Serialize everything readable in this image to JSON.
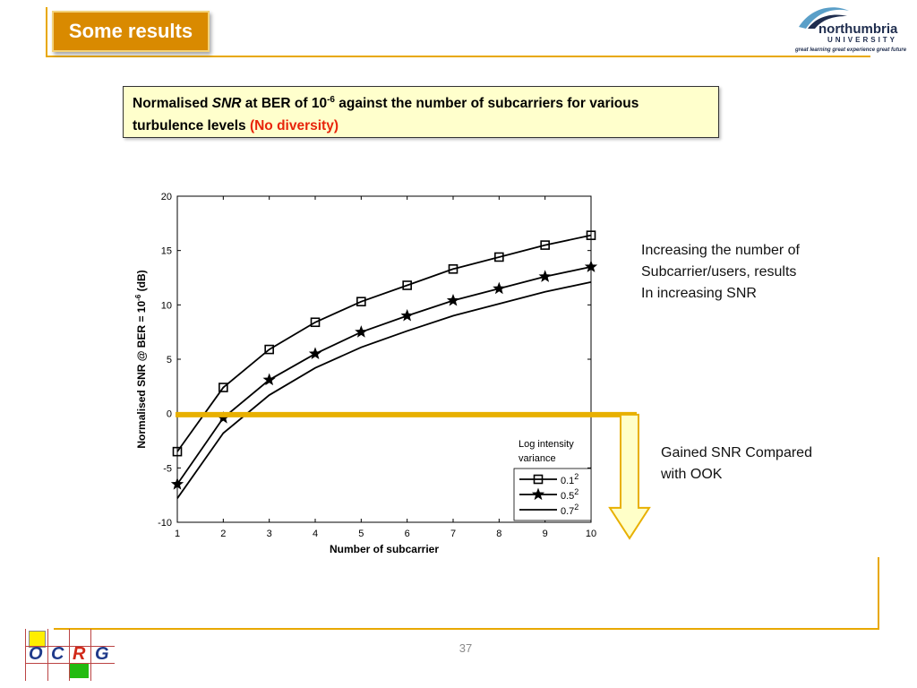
{
  "slide": {
    "title": "Some results",
    "page_number": "37",
    "logo_name": "northumbria",
    "logo_university": "UNIVERSITY",
    "logo_tagline": "great learning  great experience  great future",
    "group_logo_letters": [
      "O",
      "C",
      "R",
      "G"
    ]
  },
  "caption": {
    "part1": "Normalised ",
    "snr": "SNR",
    "part2": " at BER of 10",
    "exp": "-6",
    "part3": " against the number of subcarriers for various turbulence levels ",
    "highlight": "(No diversity)"
  },
  "notes": {
    "note1_lines": [
      "Increasing the number of",
      "Subcarrier/users, results",
      "In increasing SNR"
    ],
    "note2_lines": [
      "Gained SNR Compared",
      "with OOK"
    ]
  },
  "colors": {
    "accent": "#e8a800",
    "title_bg": "#d98a00",
    "caption_bg": "#ffffcc",
    "caption_highlight": "#e8240b",
    "annotation_bar": "#e8b000",
    "arrow_fill": "#ffffc8"
  },
  "chart_data": {
    "type": "line",
    "xlabel": "Number of subcarrier",
    "ylabel_main": "Normalised SNR @ BER = 10",
    "ylabel_exp": "-6",
    "ylabel_unit": "  (dB)",
    "xlim": [
      1,
      10
    ],
    "ylim": [
      -10,
      20
    ],
    "xticks": [
      1,
      2,
      3,
      4,
      5,
      6,
      7,
      8,
      9,
      10
    ],
    "yticks": [
      -10,
      -5,
      0,
      5,
      10,
      15,
      20
    ],
    "x": [
      1,
      2,
      3,
      4,
      5,
      6,
      7,
      8,
      9,
      10
    ],
    "legend_title_lines": [
      "Log intensity",
      "variance"
    ],
    "legend_position": "bottom-right",
    "series": [
      {
        "name": "0.1",
        "name_exp": "2",
        "marker": "square",
        "values": [
          -3.5,
          2.4,
          5.9,
          8.4,
          10.3,
          11.8,
          13.3,
          14.4,
          15.5,
          16.4
        ]
      },
      {
        "name": "0.5",
        "name_exp": "2",
        "marker": "star",
        "values": [
          -6.5,
          -0.4,
          3.1,
          5.5,
          7.5,
          9.0,
          10.4,
          11.5,
          12.6,
          13.5
        ]
      },
      {
        "name": "0.7",
        "name_exp": "2",
        "marker": "none",
        "values": [
          -7.8,
          -1.8,
          1.7,
          4.2,
          6.1,
          7.6,
          9.0,
          10.1,
          11.2,
          12.1
        ]
      }
    ],
    "annotation_level": -0.1
  }
}
